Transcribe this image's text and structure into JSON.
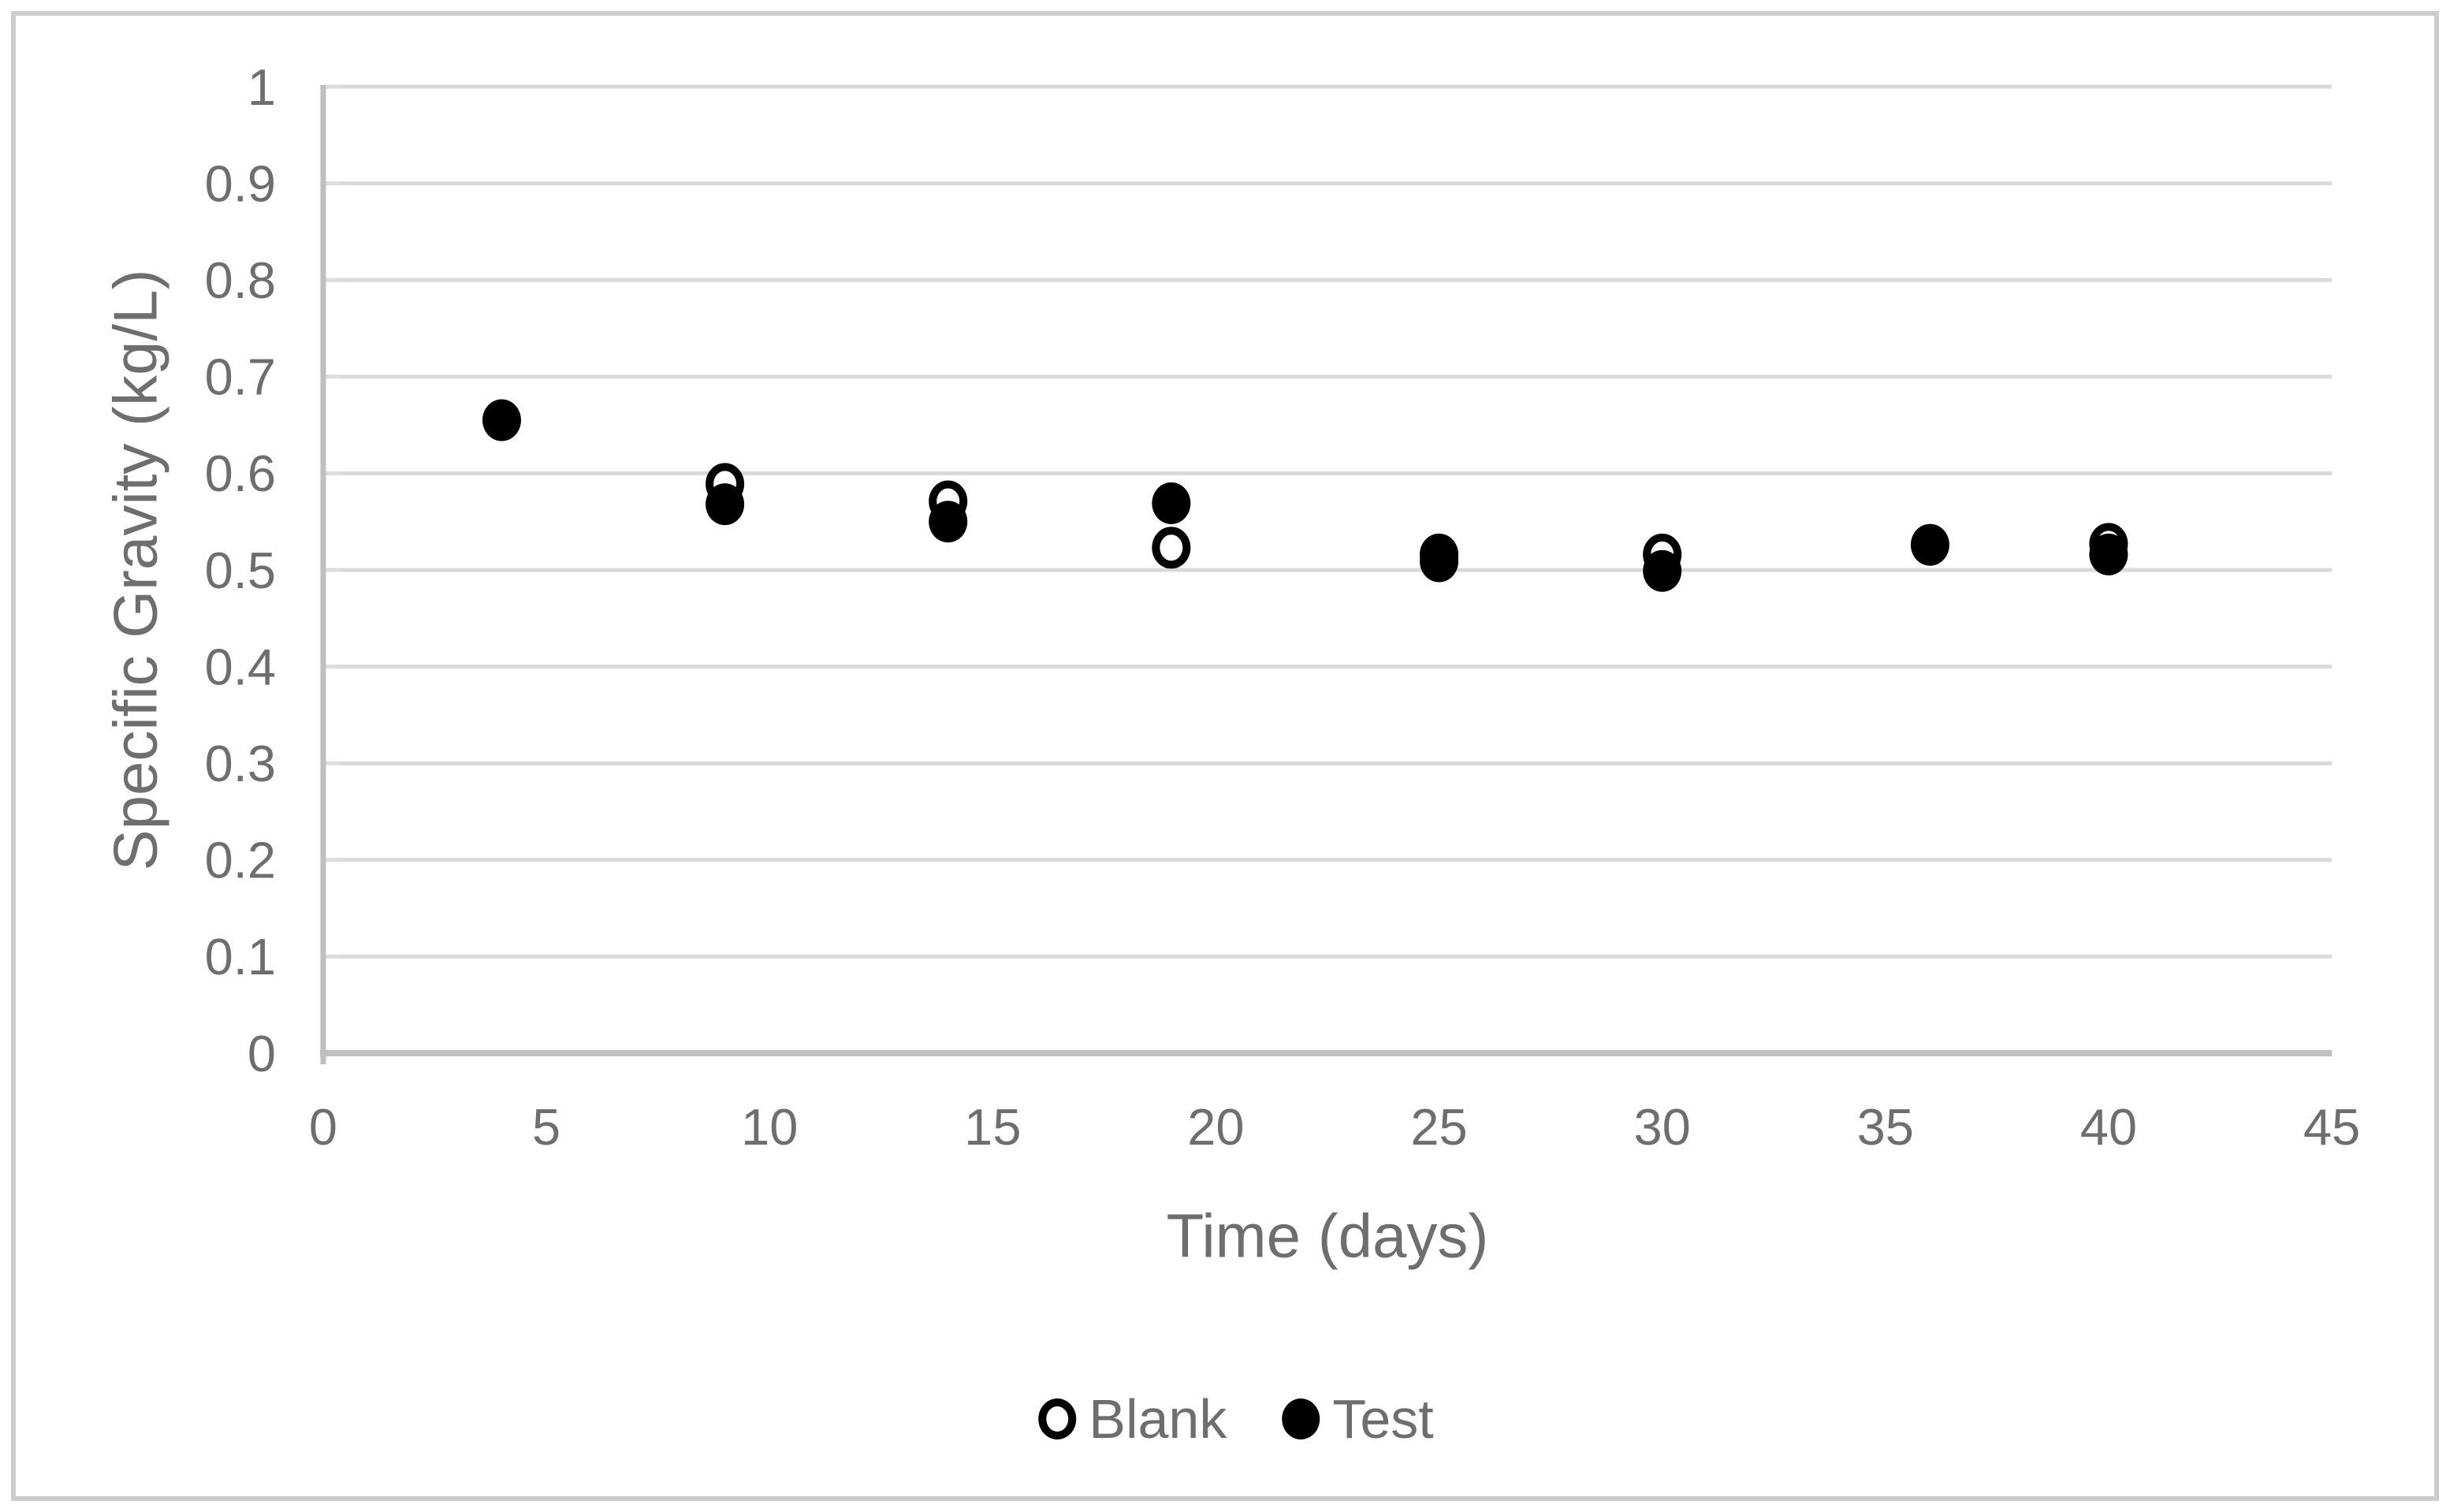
{
  "chart_data": {
    "type": "scatter",
    "title": "",
    "xlabel": "Time (days)",
    "ylabel": "Specific Gravity (kg/L)",
    "xlim": [
      0,
      45
    ],
    "ylim": [
      0,
      1
    ],
    "grid": "horizontal",
    "legend_position": "bottom-center",
    "x_ticks": [
      {
        "value": 0,
        "label": "0"
      },
      {
        "value": 5,
        "label": "5"
      },
      {
        "value": 10,
        "label": "10"
      },
      {
        "value": 15,
        "label": "15"
      },
      {
        "value": 20,
        "label": "20"
      },
      {
        "value": 25,
        "label": "25"
      },
      {
        "value": 30,
        "label": "30"
      },
      {
        "value": 35,
        "label": "35"
      },
      {
        "value": 40,
        "label": "40"
      },
      {
        "value": 45,
        "label": "45"
      }
    ],
    "y_ticks": [
      {
        "value": 0,
        "label": "0"
      },
      {
        "value": 0.1,
        "label": "0.1"
      },
      {
        "value": 0.2,
        "label": "0.2"
      },
      {
        "value": 0.3,
        "label": "0.3"
      },
      {
        "value": 0.4,
        "label": "0.4"
      },
      {
        "value": 0.5,
        "label": "0.5"
      },
      {
        "value": 0.6,
        "label": "0.6"
      },
      {
        "value": 0.7,
        "label": "0.7"
      },
      {
        "value": 0.8,
        "label": "0.8"
      },
      {
        "value": 0.9,
        "label": "0.9"
      },
      {
        "value": 1,
        "label": "1"
      }
    ],
    "series": [
      {
        "name": "Blank",
        "marker": "open-circle",
        "points": [
          {
            "x": 9,
            "y": 0.589
          },
          {
            "x": 14,
            "y": 0.571
          },
          {
            "x": 19,
            "y": 0.523
          },
          {
            "x": 25,
            "y": 0.516
          },
          {
            "x": 30,
            "y": 0.516
          },
          {
            "x": 40,
            "y": 0.527
          }
        ]
      },
      {
        "name": "Test",
        "marker": "filled-circle",
        "points": [
          {
            "x": 4,
            "y": 0.655
          },
          {
            "x": 9,
            "y": 0.568
          },
          {
            "x": 14,
            "y": 0.55
          },
          {
            "x": 19,
            "y": 0.569
          },
          {
            "x": 25,
            "y": 0.509
          },
          {
            "x": 30,
            "y": 0.499
          },
          {
            "x": 36,
            "y": 0.526
          },
          {
            "x": 40,
            "y": 0.516
          }
        ]
      }
    ]
  },
  "colors": {
    "marker": "#000000",
    "text": "#6e6e6e",
    "gridline": "#d9d9d9",
    "axis_line": "#bfbfbf",
    "tick_mark": "#dddddd",
    "frame": "#cccccc",
    "background": "#ffffff"
  }
}
